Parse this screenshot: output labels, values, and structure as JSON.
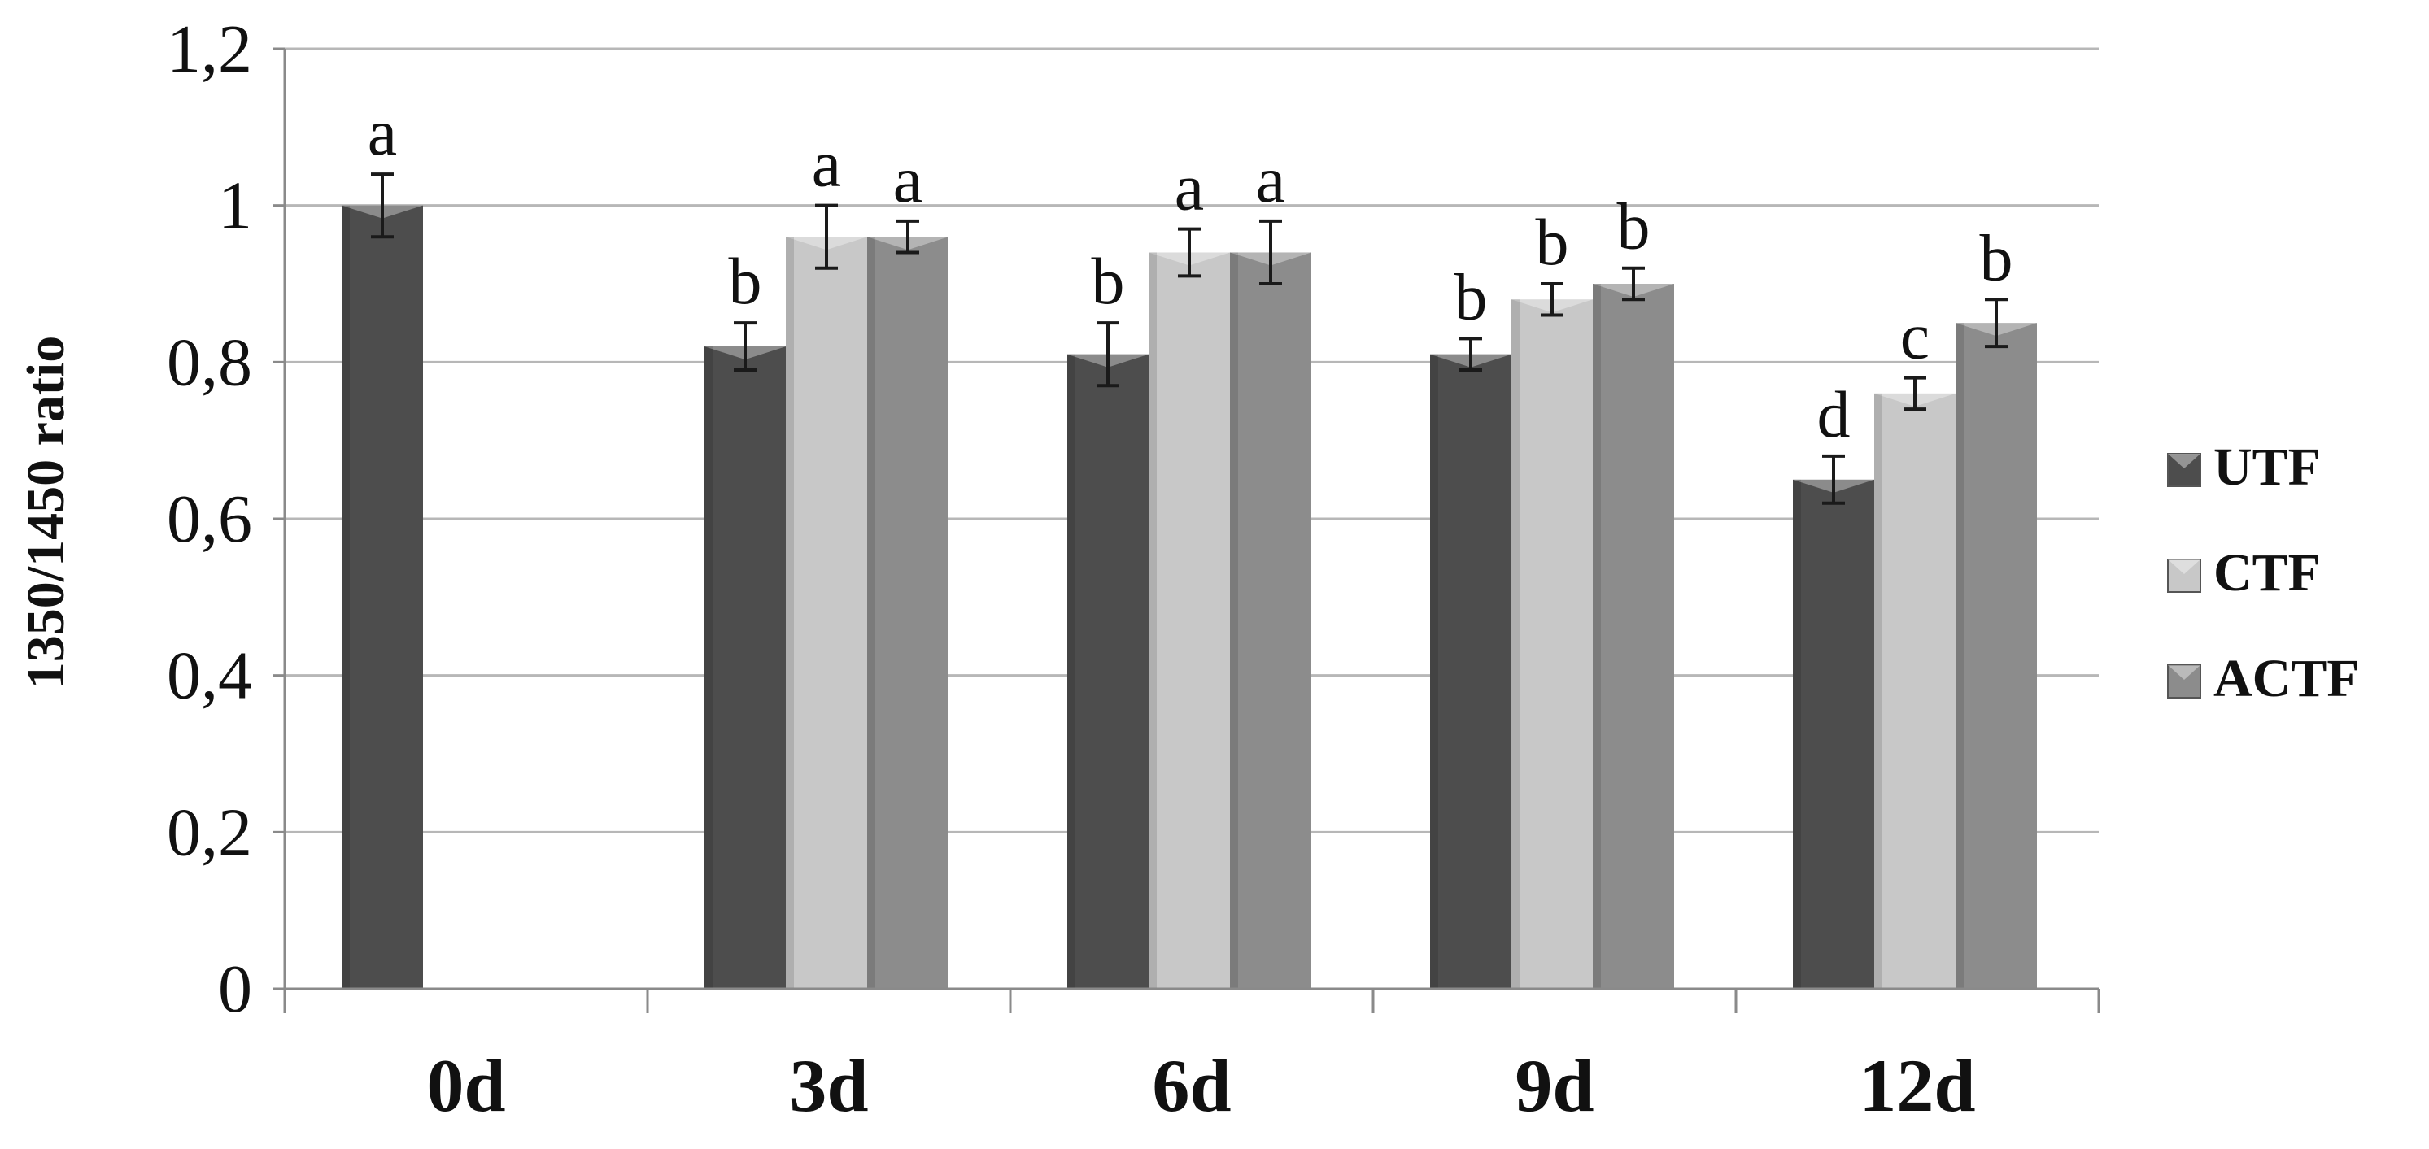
{
  "chart_data": {
    "type": "bar",
    "title": "",
    "xlabel": "",
    "ylabel": "1350/1450 ratio",
    "ylim": [
      0,
      1.2
    ],
    "y_ticks": [
      "0",
      "0,2",
      "0,4",
      "0,6",
      "0,8",
      "1",
      "1,2"
    ],
    "categories": [
      "0d",
      "3d",
      "6d",
      "9d",
      "12d"
    ],
    "grid": true,
    "legend_position": "right",
    "series": [
      {
        "name": "UTF",
        "color": "#4d4d4d",
        "values": [
          1.0,
          0.82,
          0.81,
          0.81,
          0.65
        ],
        "errors": [
          0.04,
          0.03,
          0.04,
          0.02,
          0.03
        ],
        "labels": [
          "a",
          "b",
          "b",
          "b",
          "d"
        ]
      },
      {
        "name": "CTF",
        "color": "#c8c8c8",
        "values": [
          null,
          0.96,
          0.94,
          0.88,
          0.76
        ],
        "errors": [
          null,
          0.04,
          0.03,
          0.02,
          0.02
        ],
        "labels": [
          "",
          "a",
          "a",
          "b",
          "c"
        ]
      },
      {
        "name": "ACTF",
        "color": "#8c8c8c",
        "values": [
          null,
          0.96,
          0.94,
          0.9,
          0.85
        ],
        "errors": [
          null,
          0.02,
          0.04,
          0.02,
          0.03
        ],
        "labels": [
          "",
          "a",
          "a",
          "b",
          "b"
        ]
      }
    ]
  }
}
